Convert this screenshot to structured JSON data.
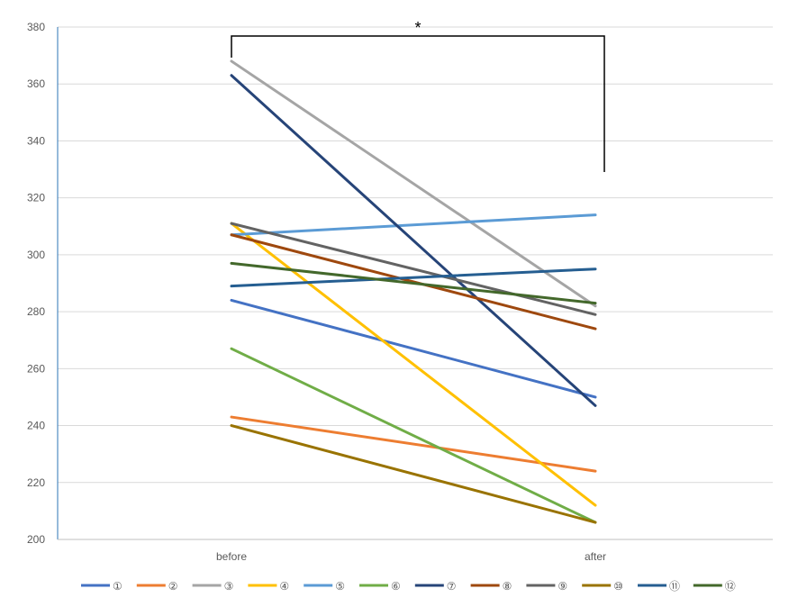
{
  "chart_data": {
    "type": "line",
    "title": "",
    "xlabel": "",
    "ylabel": "",
    "categories": [
      "before",
      "after"
    ],
    "ylim": [
      200,
      380
    ],
    "yticks": [
      200,
      220,
      240,
      260,
      280,
      300,
      320,
      340,
      360,
      380
    ],
    "grid": true,
    "legend_position": "bottom",
    "series": [
      {
        "name": "①",
        "color": "#4472C4",
        "values": [
          284,
          250
        ]
      },
      {
        "name": "②",
        "color": "#ED7D31",
        "values": [
          243,
          224
        ]
      },
      {
        "name": "③",
        "color": "#A5A5A5",
        "values": [
          368,
          282
        ]
      },
      {
        "name": "④",
        "color": "#FFC000",
        "values": [
          311,
          212
        ]
      },
      {
        "name": "⑤",
        "color": "#5B9BD5",
        "values": [
          307,
          314
        ]
      },
      {
        "name": "⑥",
        "color": "#70AD47",
        "values": [
          267,
          206
        ]
      },
      {
        "name": "⑦",
        "color": "#264478",
        "values": [
          363,
          247
        ]
      },
      {
        "name": "⑧",
        "color": "#9E480E",
        "values": [
          307,
          274
        ]
      },
      {
        "name": "⑨",
        "color": "#636363",
        "values": [
          311,
          279
        ]
      },
      {
        "name": "⑩",
        "color": "#997300",
        "values": [
          240,
          206
        ]
      },
      {
        "name": "⑪",
        "color": "#255E91",
        "values": [
          289,
          295
        ]
      },
      {
        "name": "⑫",
        "color": "#43682B",
        "values": [
          297,
          283
        ]
      }
    ],
    "annotations": [
      {
        "type": "significance-bracket",
        "text": "*",
        "from": "before",
        "to": "after"
      }
    ]
  }
}
